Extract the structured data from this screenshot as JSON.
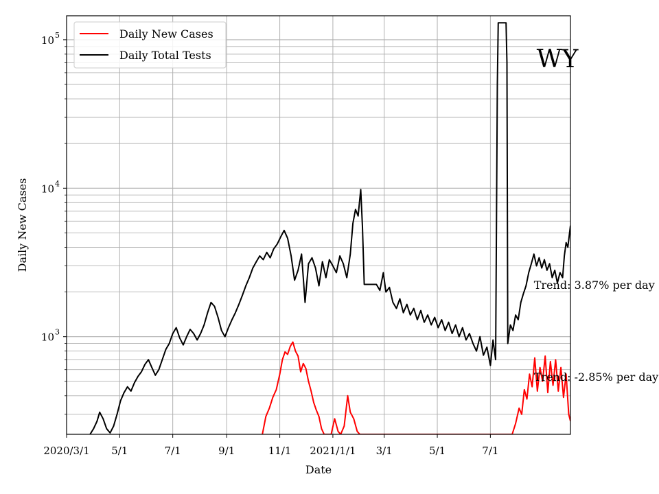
{
  "chart_data": {
    "type": "line",
    "title": "",
    "state_label": "WY",
    "xlabel": "Date",
    "ylabel": "Daily New Cases",
    "y_scale": "log",
    "ylim": [
      220,
      145000
    ],
    "xlim": [
      "2020-03-01",
      "2021-10-01"
    ],
    "x_ticks": [
      {
        "date": "2020-03-01",
        "label": "2020/3/1"
      },
      {
        "date": "2020-05-01",
        "label": "5/1"
      },
      {
        "date": "2020-07-01",
        "label": "7/1"
      },
      {
        "date": "2020-09-01",
        "label": "9/1"
      },
      {
        "date": "2020-11-01",
        "label": "11/1"
      },
      {
        "date": "2021-01-01",
        "label": "2021/1/1"
      },
      {
        "date": "2021-03-01",
        "label": "3/1"
      },
      {
        "date": "2021-05-01",
        "label": "5/1"
      },
      {
        "date": "2021-07-01",
        "label": "7/1"
      }
    ],
    "y_ticks": [
      {
        "value": 1000,
        "base": "10",
        "exp": "3"
      },
      {
        "value": 10000,
        "base": "10",
        "exp": "4"
      },
      {
        "value": 100000,
        "base": "10",
        "exp": "5"
      }
    ],
    "grid": true,
    "legend_position": "top-left",
    "series": [
      {
        "name": "Daily New Cases",
        "color": "#ff0000",
        "points": [
          [
            "2020-10-12",
            220
          ],
          [
            "2020-10-16",
            290
          ],
          [
            "2020-10-20",
            330
          ],
          [
            "2020-10-24",
            390
          ],
          [
            "2020-10-28",
            440
          ],
          [
            "2020-11-01",
            560
          ],
          [
            "2020-11-04",
            700
          ],
          [
            "2020-11-07",
            790
          ],
          [
            "2020-11-10",
            760
          ],
          [
            "2020-11-13",
            860
          ],
          [
            "2020-11-16",
            920
          ],
          [
            "2020-11-19",
            800
          ],
          [
            "2020-11-22",
            740
          ],
          [
            "2020-11-25",
            580
          ],
          [
            "2020-11-28",
            660
          ],
          [
            "2020-12-01",
            610
          ],
          [
            "2020-12-04",
            500
          ],
          [
            "2020-12-07",
            430
          ],
          [
            "2020-12-10",
            360
          ],
          [
            "2020-12-13",
            320
          ],
          [
            "2020-12-16",
            290
          ],
          [
            "2020-12-19",
            240
          ],
          [
            "2020-12-22",
            220
          ],
          [
            "2020-12-30",
            220
          ],
          [
            "2021-01-03",
            280
          ],
          [
            "2021-01-07",
            230
          ],
          [
            "2021-01-10",
            220
          ],
          [
            "2021-01-14",
            250
          ],
          [
            "2021-01-18",
            400
          ],
          [
            "2021-01-21",
            310
          ],
          [
            "2021-01-25",
            280
          ],
          [
            "2021-01-29",
            230
          ],
          [
            "2021-02-01",
            220
          ],
          [
            "2021-07-26",
            220
          ],
          [
            "2021-07-30",
            260
          ],
          [
            "2021-08-03",
            330
          ],
          [
            "2021-08-06",
            300
          ],
          [
            "2021-08-09",
            440
          ],
          [
            "2021-08-12",
            380
          ],
          [
            "2021-08-15",
            560
          ],
          [
            "2021-08-18",
            460
          ],
          [
            "2021-08-21",
            720
          ],
          [
            "2021-08-24",
            430
          ],
          [
            "2021-08-27",
            620
          ],
          [
            "2021-08-30",
            500
          ],
          [
            "2021-09-02",
            740
          ],
          [
            "2021-09-05",
            420
          ],
          [
            "2021-09-08",
            680
          ],
          [
            "2021-09-11",
            470
          ],
          [
            "2021-09-14",
            700
          ],
          [
            "2021-09-17",
            430
          ],
          [
            "2021-09-20",
            620
          ],
          [
            "2021-09-23",
            390
          ],
          [
            "2021-09-26",
            560
          ],
          [
            "2021-09-29",
            300
          ],
          [
            "2021-10-01",
            270
          ]
        ]
      },
      {
        "name": "Daily Total Tests",
        "color": "#000000",
        "points": [
          [
            "2020-03-28",
            220
          ],
          [
            "2020-04-01",
            240
          ],
          [
            "2020-04-05",
            270
          ],
          [
            "2020-04-08",
            310
          ],
          [
            "2020-04-12",
            280
          ],
          [
            "2020-04-16",
            240
          ],
          [
            "2020-04-20",
            225
          ],
          [
            "2020-04-24",
            250
          ],
          [
            "2020-04-28",
            300
          ],
          [
            "2020-05-02",
            370
          ],
          [
            "2020-05-06",
            420
          ],
          [
            "2020-05-10",
            460
          ],
          [
            "2020-05-14",
            430
          ],
          [
            "2020-05-18",
            490
          ],
          [
            "2020-05-22",
            540
          ],
          [
            "2020-05-26",
            580
          ],
          [
            "2020-05-30",
            650
          ],
          [
            "2020-06-03",
            700
          ],
          [
            "2020-06-07",
            620
          ],
          [
            "2020-06-11",
            550
          ],
          [
            "2020-06-15",
            600
          ],
          [
            "2020-06-19",
            700
          ],
          [
            "2020-06-23",
            820
          ],
          [
            "2020-06-27",
            900
          ],
          [
            "2020-07-01",
            1050
          ],
          [
            "2020-07-05",
            1150
          ],
          [
            "2020-07-09",
            980
          ],
          [
            "2020-07-13",
            880
          ],
          [
            "2020-07-17",
            1000
          ],
          [
            "2020-07-21",
            1120
          ],
          [
            "2020-07-25",
            1050
          ],
          [
            "2020-07-29",
            950
          ],
          [
            "2020-08-02",
            1050
          ],
          [
            "2020-08-06",
            1200
          ],
          [
            "2020-08-10",
            1450
          ],
          [
            "2020-08-14",
            1700
          ],
          [
            "2020-08-18",
            1600
          ],
          [
            "2020-08-22",
            1350
          ],
          [
            "2020-08-26",
            1100
          ],
          [
            "2020-08-30",
            1000
          ],
          [
            "2020-09-03",
            1150
          ],
          [
            "2020-09-07",
            1300
          ],
          [
            "2020-09-11",
            1450
          ],
          [
            "2020-09-15",
            1650
          ],
          [
            "2020-09-19",
            1900
          ],
          [
            "2020-09-23",
            2200
          ],
          [
            "2020-09-27",
            2500
          ],
          [
            "2020-10-01",
            2900
          ],
          [
            "2020-10-05",
            3200
          ],
          [
            "2020-10-09",
            3500
          ],
          [
            "2020-10-13",
            3300
          ],
          [
            "2020-10-17",
            3700
          ],
          [
            "2020-10-21",
            3400
          ],
          [
            "2020-10-25",
            3900
          ],
          [
            "2020-10-29",
            4200
          ],
          [
            "2020-11-02",
            4700
          ],
          [
            "2020-11-06",
            5200
          ],
          [
            "2020-11-10",
            4600
          ],
          [
            "2020-11-14",
            3500
          ],
          [
            "2020-11-18",
            2400
          ],
          [
            "2020-11-22",
            2800
          ],
          [
            "2020-11-26",
            3600
          ],
          [
            "2020-11-30",
            1700
          ],
          [
            "2020-12-04",
            3100
          ],
          [
            "2020-12-08",
            3400
          ],
          [
            "2020-12-12",
            2900
          ],
          [
            "2020-12-16",
            2200
          ],
          [
            "2020-12-20",
            3200
          ],
          [
            "2020-12-24",
            2500
          ],
          [
            "2020-12-28",
            3300
          ],
          [
            "2021-01-01",
            3000
          ],
          [
            "2021-01-05",
            2700
          ],
          [
            "2021-01-09",
            3500
          ],
          [
            "2021-01-13",
            3100
          ],
          [
            "2021-01-17",
            2500
          ],
          [
            "2021-01-21",
            3600
          ],
          [
            "2021-01-24",
            5800
          ],
          [
            "2021-01-27",
            7200
          ],
          [
            "2021-01-30",
            6500
          ],
          [
            "2021-02-02",
            9800
          ],
          [
            "2021-02-04",
            5500
          ],
          [
            "2021-02-06",
            2250
          ],
          [
            "2021-02-20",
            2250
          ],
          [
            "2021-02-24",
            2050
          ],
          [
            "2021-02-28",
            2700
          ],
          [
            "2021-03-03",
            2000
          ],
          [
            "2021-03-07",
            2150
          ],
          [
            "2021-03-11",
            1700
          ],
          [
            "2021-03-15",
            1550
          ],
          [
            "2021-03-19",
            1800
          ],
          [
            "2021-03-23",
            1450
          ],
          [
            "2021-03-27",
            1650
          ],
          [
            "2021-03-31",
            1400
          ],
          [
            "2021-04-04",
            1550
          ],
          [
            "2021-04-08",
            1300
          ],
          [
            "2021-04-12",
            1500
          ],
          [
            "2021-04-16",
            1250
          ],
          [
            "2021-04-20",
            1400
          ],
          [
            "2021-04-24",
            1200
          ],
          [
            "2021-04-28",
            1350
          ],
          [
            "2021-05-02",
            1150
          ],
          [
            "2021-05-06",
            1300
          ],
          [
            "2021-05-10",
            1100
          ],
          [
            "2021-05-14",
            1250
          ],
          [
            "2021-05-18",
            1050
          ],
          [
            "2021-05-22",
            1200
          ],
          [
            "2021-05-26",
            1000
          ],
          [
            "2021-05-30",
            1150
          ],
          [
            "2021-06-03",
            950
          ],
          [
            "2021-06-07",
            1050
          ],
          [
            "2021-06-11",
            900
          ],
          [
            "2021-06-15",
            800
          ],
          [
            "2021-06-19",
            1000
          ],
          [
            "2021-06-23",
            750
          ],
          [
            "2021-06-27",
            850
          ],
          [
            "2021-07-01",
            640
          ],
          [
            "2021-07-04",
            950
          ],
          [
            "2021-07-07",
            700
          ],
          [
            "2021-07-09",
            50000
          ],
          [
            "2021-07-10",
            130000
          ],
          [
            "2021-07-19",
            130000
          ],
          [
            "2021-07-20",
            70000
          ],
          [
            "2021-07-21",
            900
          ],
          [
            "2021-07-24",
            1200
          ],
          [
            "2021-07-27",
            1100
          ],
          [
            "2021-07-30",
            1400
          ],
          [
            "2021-08-02",
            1300
          ],
          [
            "2021-08-05",
            1700
          ],
          [
            "2021-08-08",
            1950
          ],
          [
            "2021-08-11",
            2200
          ],
          [
            "2021-08-14",
            2700
          ],
          [
            "2021-08-17",
            3100
          ],
          [
            "2021-08-20",
            3600
          ],
          [
            "2021-08-23",
            3000
          ],
          [
            "2021-08-26",
            3400
          ],
          [
            "2021-08-29",
            2900
          ],
          [
            "2021-09-01",
            3300
          ],
          [
            "2021-09-04",
            2800
          ],
          [
            "2021-09-07",
            3100
          ],
          [
            "2021-09-10",
            2500
          ],
          [
            "2021-09-13",
            2800
          ],
          [
            "2021-09-16",
            2300
          ],
          [
            "2021-09-19",
            2700
          ],
          [
            "2021-09-22",
            2500
          ],
          [
            "2021-09-24",
            3500
          ],
          [
            "2021-09-26",
            4300
          ],
          [
            "2021-09-28",
            4000
          ],
          [
            "2021-09-30",
            5000
          ],
          [
            "2021-10-01",
            5600
          ]
        ]
      }
    ],
    "annotations": [
      {
        "text": "Trend: 3.87% per day",
        "date": "2021-08-20",
        "value": 2100
      },
      {
        "text": "Trend: -2.85% per day",
        "date": "2021-08-20",
        "value": 505
      }
    ]
  }
}
